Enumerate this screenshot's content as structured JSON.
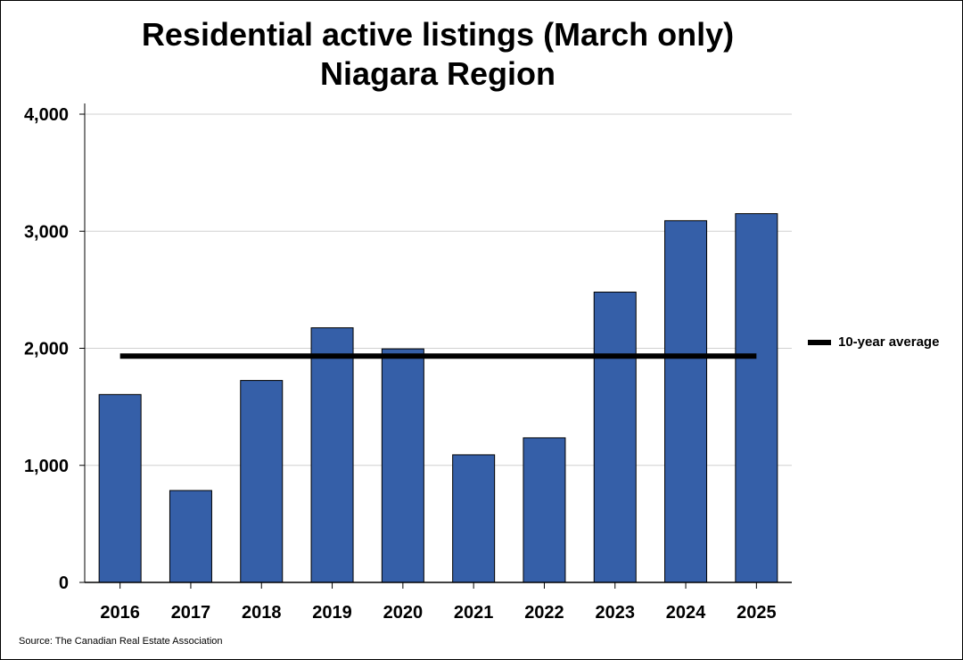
{
  "chart_data": {
    "type": "bar",
    "title": "Residential active listings (March only)",
    "subtitle": "Niagara Region",
    "categories": [
      "2016",
      "2017",
      "2018",
      "2019",
      "2020",
      "2021",
      "2022",
      "2023",
      "2024",
      "2025"
    ],
    "values": [
      1605,
      785,
      1725,
      2175,
      1995,
      1090,
      1235,
      2480,
      3090,
      3150
    ],
    "ylim": [
      0,
      4000
    ],
    "yticks": [
      0,
      1000,
      2000,
      3000,
      4000
    ],
    "ytick_labels": [
      "0",
      "1,000",
      "2,000",
      "3,000",
      "4,000"
    ],
    "reference_line": {
      "name": "10-year average",
      "value": 1933
    },
    "legend": {
      "label": "10-year average",
      "placement": "right"
    },
    "grid": true,
    "colors": {
      "bar": "#355fa8",
      "bar_edge": "#000000",
      "average_line": "#000000",
      "grid": "#d0d0d0"
    },
    "source": "Source: The Canadian Real Estate Association"
  }
}
